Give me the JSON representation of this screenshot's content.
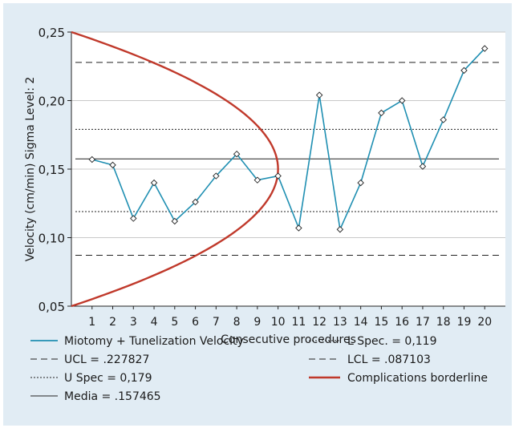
{
  "colors": {
    "panel_bg": "#e1ecf4",
    "plot_bg": "#ffffff",
    "gridline": "#c9c9c9",
    "series": "#1f8fb2",
    "borderline": "#c0392b",
    "reference": "#222222",
    "text": "#1a1a1a"
  },
  "chart_data": {
    "type": "line",
    "title": "",
    "xlabel": "Consecutive procedures",
    "ylabel": "Velocity (cm/min) Sigma Level: 2",
    "xlim": [
      0,
      21
    ],
    "ylim": [
      0.05,
      0.25
    ],
    "x_ticks": [
      1,
      2,
      3,
      4,
      5,
      6,
      7,
      8,
      9,
      10,
      11,
      12,
      13,
      14,
      15,
      16,
      17,
      18,
      19,
      20
    ],
    "y_ticks": [
      0.05,
      0.1,
      0.15,
      0.2,
      0.25
    ],
    "y_tick_labels": [
      "0,05",
      "0,10",
      "0,15",
      "0,20",
      "0,25"
    ],
    "grid": "horizontal",
    "series": [
      {
        "name": "Miotomy + Tunelization Velocity",
        "style": "line-diamond-markers",
        "x": [
          1,
          2,
          3,
          4,
          5,
          6,
          7,
          8,
          9,
          10,
          11,
          12,
          13,
          14,
          15,
          16,
          17,
          18,
          19,
          20
        ],
        "values": [
          0.157,
          0.153,
          0.114,
          0.14,
          0.112,
          0.126,
          0.145,
          0.161,
          0.142,
          0.145,
          0.107,
          0.204,
          0.106,
          0.14,
          0.191,
          0.2,
          0.152,
          0.186,
          0.222,
          0.238
        ]
      }
    ],
    "reference_lines": [
      {
        "name": "UCL = .227827",
        "value": 0.227827,
        "style": "dashed"
      },
      {
        "name": "U Spec = 0,179",
        "value": 0.179,
        "style": "dotted"
      },
      {
        "name": "Media = .157465",
        "value": 0.157465,
        "style": "solid"
      },
      {
        "name": "L Spec. = 0,119",
        "value": 0.119,
        "style": "dotted"
      },
      {
        "name": "LCL = .087103",
        "value": 0.087103,
        "style": "dashed"
      }
    ],
    "borderline": {
      "name": "Complications borderline",
      "shape": "parabola",
      "vertex": [
        10,
        0.15
      ],
      "endpoints": [
        [
          0,
          0.25
        ],
        [
          0,
          0.05
        ]
      ]
    },
    "legend": {
      "position": "bottom",
      "left_column": [
        "Miotomy + Tunelization Velocity",
        "UCL = .227827",
        "U Spec = 0,179",
        "Media = .157465"
      ],
      "right_column": [
        "L Spec. = 0,119",
        "LCL = .087103",
        "Complications borderline"
      ]
    }
  }
}
